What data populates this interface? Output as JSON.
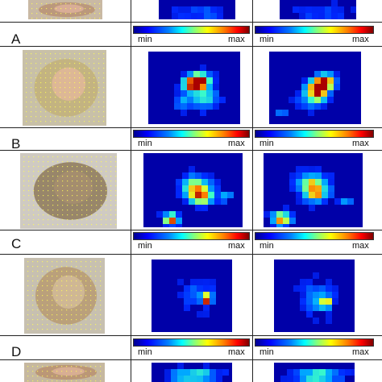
{
  "rows": [
    {
      "letter": "A",
      "min_label": "min",
      "max_label": "max"
    },
    {
      "letter": "B",
      "min_label": "min",
      "max_label": "max"
    },
    {
      "letter": "C",
      "min_label": "min",
      "max_label": "max"
    },
    {
      "letter": "D",
      "min_label": "min",
      "max_label": "max"
    }
  ],
  "colors": {
    "map_background": "#0000a8",
    "grid_dot": "#ffff55",
    "row_divider": "#222222"
  }
}
